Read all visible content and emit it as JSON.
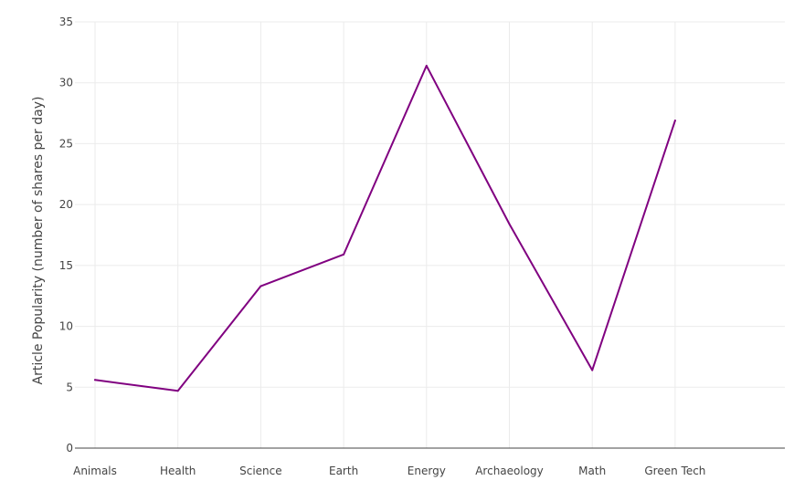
{
  "chart_data": {
    "type": "line",
    "title": "",
    "xlabel": "",
    "ylabel": "Article Popularity (number of shares per day)",
    "categories": [
      "Animals",
      "Health",
      "Science",
      "Earth",
      "Energy",
      "Archaeology",
      "Math",
      "Green Tech"
    ],
    "series": [
      {
        "values": [
          5.6,
          4.7,
          13.3,
          15.9,
          31.4,
          18.4,
          6.4,
          26.9
        ],
        "color": "#800080"
      }
    ],
    "ylim": [
      0,
      35
    ],
    "yticks": [
      0,
      5,
      10,
      15,
      20,
      25,
      30,
      35
    ],
    "grid": true,
    "legend": "none"
  }
}
